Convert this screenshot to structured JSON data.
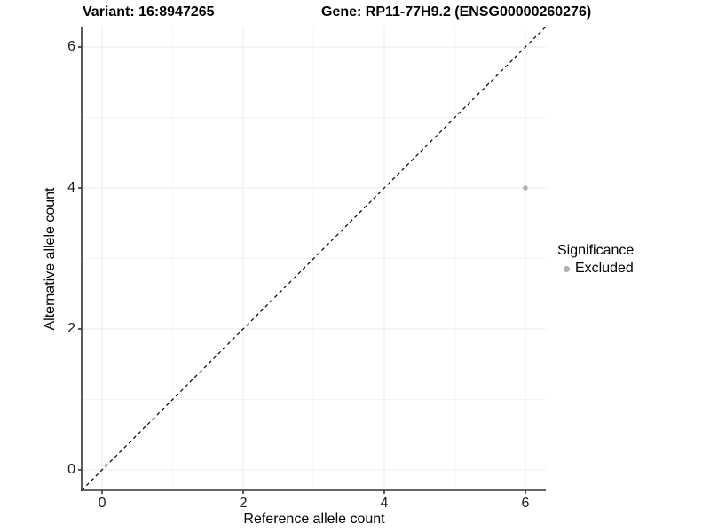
{
  "titles": {
    "variant": "Variant: 16:8947265",
    "gene": "Gene: RP11-77H9.2 (ENSG00000260276)"
  },
  "chart_data": {
    "type": "scatter",
    "xlabel": "Reference allele count",
    "ylabel": "Alternative allele count",
    "xlim": [
      -0.29,
      6.29
    ],
    "ylim": [
      -0.29,
      6.29
    ],
    "x_breaks": [
      0,
      2,
      4,
      6
    ],
    "y_breaks": [
      0,
      2,
      4,
      6
    ],
    "x_minor_breaks": [
      1,
      3,
      5
    ],
    "y_minor_breaks": [
      1,
      3,
      5
    ],
    "grid": true,
    "points": [
      {
        "x": 6,
        "y": 4,
        "series": "Excluded"
      }
    ],
    "reference_line": {
      "type": "identity",
      "style": "dashed"
    },
    "legend": {
      "title": "Significance",
      "position": "right",
      "items": [
        {
          "label": "Excluded",
          "color": "#b0b0b0"
        }
      ]
    }
  },
  "colors": {
    "background": "#ffffff",
    "grid_major": "#ececec",
    "grid_minor": "#f4f4f4",
    "axis_line": "#333333",
    "tick_mark": "#333333",
    "identity_line": "#000000",
    "excluded_point": "#b0b0b0",
    "text": "#000000"
  }
}
